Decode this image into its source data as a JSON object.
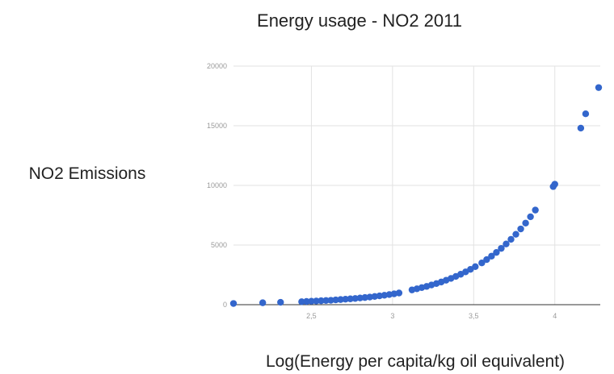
{
  "chart_data": {
    "type": "scatter",
    "title": "Energy usage - NO2 2011",
    "xlabel": "Log(Energy per capita/kg oil equivalent)",
    "ylabel": "NO2 Emissions",
    "xlim": [
      2.02,
      4.28
    ],
    "ylim": [
      0,
      20000
    ],
    "x_ticks": [
      {
        "value": 2.5,
        "label": "2,5"
      },
      {
        "value": 3,
        "label": "3"
      },
      {
        "value": 3.5,
        "label": "3,5"
      },
      {
        "value": 4,
        "label": "4"
      }
    ],
    "y_ticks": [
      {
        "value": 0,
        "label": "0"
      },
      {
        "value": 5000,
        "label": "5000"
      },
      {
        "value": 10000,
        "label": "10000"
      },
      {
        "value": 15000,
        "label": "15000"
      },
      {
        "value": 20000,
        "label": "20000"
      }
    ],
    "grid": true,
    "legend": "none",
    "marker_color": "#3366cc",
    "points": [
      [
        2.02,
        100
      ],
      [
        2.2,
        160
      ],
      [
        2.31,
        200
      ],
      [
        2.44,
        250
      ],
      [
        2.47,
        270
      ],
      [
        2.5,
        290
      ],
      [
        2.53,
        310
      ],
      [
        2.56,
        330
      ],
      [
        2.59,
        350
      ],
      [
        2.62,
        370
      ],
      [
        2.65,
        400
      ],
      [
        2.68,
        430
      ],
      [
        2.71,
        460
      ],
      [
        2.74,
        490
      ],
      [
        2.77,
        520
      ],
      [
        2.8,
        560
      ],
      [
        2.83,
        600
      ],
      [
        2.86,
        640
      ],
      [
        2.89,
        690
      ],
      [
        2.92,
        740
      ],
      [
        2.95,
        790
      ],
      [
        2.98,
        850
      ],
      [
        3.01,
        910
      ],
      [
        3.04,
        980
      ],
      [
        3.12,
        1240
      ],
      [
        3.15,
        1330
      ],
      [
        3.18,
        1430
      ],
      [
        3.21,
        1530
      ],
      [
        3.24,
        1650
      ],
      [
        3.27,
        1770
      ],
      [
        3.3,
        1900
      ],
      [
        3.33,
        2050
      ],
      [
        3.36,
        2200
      ],
      [
        3.39,
        2370
      ],
      [
        3.42,
        2550
      ],
      [
        3.45,
        2750
      ],
      [
        3.48,
        2960
      ],
      [
        3.51,
        3190
      ],
      [
        3.55,
        3500
      ],
      [
        3.58,
        3780
      ],
      [
        3.61,
        4070
      ],
      [
        3.64,
        4380
      ],
      [
        3.67,
        4720
      ],
      [
        3.7,
        5090
      ],
      [
        3.73,
        5480
      ],
      [
        3.76,
        5900
      ],
      [
        3.79,
        6350
      ],
      [
        3.82,
        6840
      ],
      [
        3.85,
        7370
      ],
      [
        3.88,
        7930
      ],
      [
        3.99,
        9900
      ],
      [
        4.0,
        10100
      ],
      [
        4.16,
        14800
      ],
      [
        4.19,
        16000
      ],
      [
        4.27,
        18200
      ]
    ]
  }
}
